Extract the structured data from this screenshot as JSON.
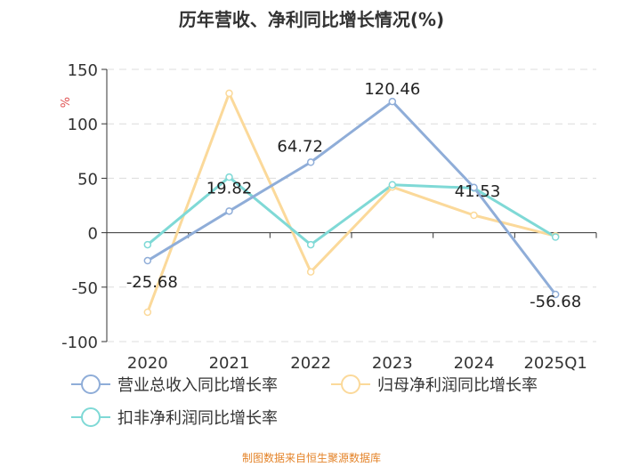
{
  "chart_data": {
    "type": "line",
    "title": "历年营收、净利同比增长情况(%)",
    "ylabel": "%",
    "categories": [
      "2020",
      "2021",
      "2022",
      "2023",
      "2024",
      "2025Q1"
    ],
    "ylim": [
      -100,
      150
    ],
    "yticks": [
      150,
      100,
      50,
      0,
      -50,
      -100
    ],
    "grid": true,
    "legend_position": "bottom",
    "series": [
      {
        "name": "营业总收入同比增长率",
        "color": "#8fadd8",
        "values": [
          -25.68,
          19.82,
          64.72,
          120.46,
          41.53,
          -56.68
        ],
        "labels": [
          "-25.68",
          "19.82",
          "64.72",
          "120.46",
          "41.53",
          "-56.68"
        ]
      },
      {
        "name": "归母净利润同比增长率",
        "color": "#fbd99a",
        "values": [
          -73,
          128,
          -36,
          42,
          16,
          -3
        ]
      },
      {
        "name": "扣非净利润同比增长率",
        "color": "#7fd9d6",
        "values": [
          -11,
          51,
          -11,
          44,
          41,
          -4
        ]
      }
    ]
  },
  "footer": "制图数据来自恒生聚源数据库"
}
